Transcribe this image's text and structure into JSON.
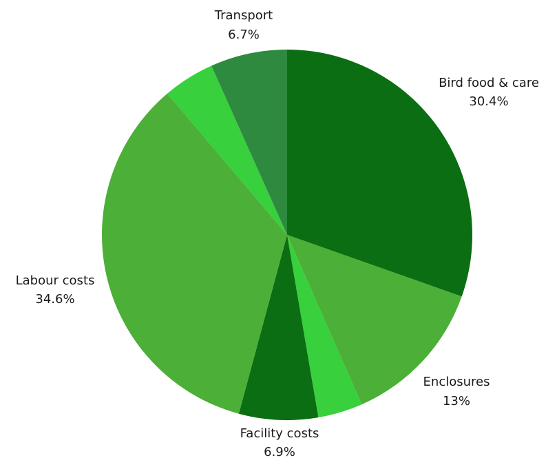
{
  "chart_data": {
    "type": "pie",
    "title": "",
    "start_angle_deg": 0,
    "direction": "clockwise",
    "slices": [
      {
        "key": "bird-food-care",
        "label": "Bird food & care",
        "value": 30.4,
        "value_label": "30.4%",
        "color": "#0b6e12",
        "show_label": true
      },
      {
        "key": "enclosures",
        "label": "Enclosures",
        "value": 13,
        "value_label": "13%",
        "color": "#4caf38",
        "show_label": true
      },
      {
        "key": "unlabeled-a",
        "label": "",
        "value": 3.9,
        "value_label": "",
        "color": "#38d03c",
        "show_label": false
      },
      {
        "key": "facility-costs",
        "label": "Facility costs",
        "value": 6.9,
        "value_label": "6.9%",
        "color": "#0b6e12",
        "show_label": true
      },
      {
        "key": "labour-costs",
        "label": "Labour costs",
        "value": 34.6,
        "value_label": "34.6%",
        "color": "#4caf38",
        "show_label": true
      },
      {
        "key": "unlabeled-b",
        "label": "",
        "value": 4.5,
        "value_label": "",
        "color": "#38d03c",
        "show_label": false
      },
      {
        "key": "transport",
        "label": "Transport",
        "value": 6.7,
        "value_label": "6.7%",
        "color": "#2e8a3e",
        "show_label": true
      }
    ]
  }
}
